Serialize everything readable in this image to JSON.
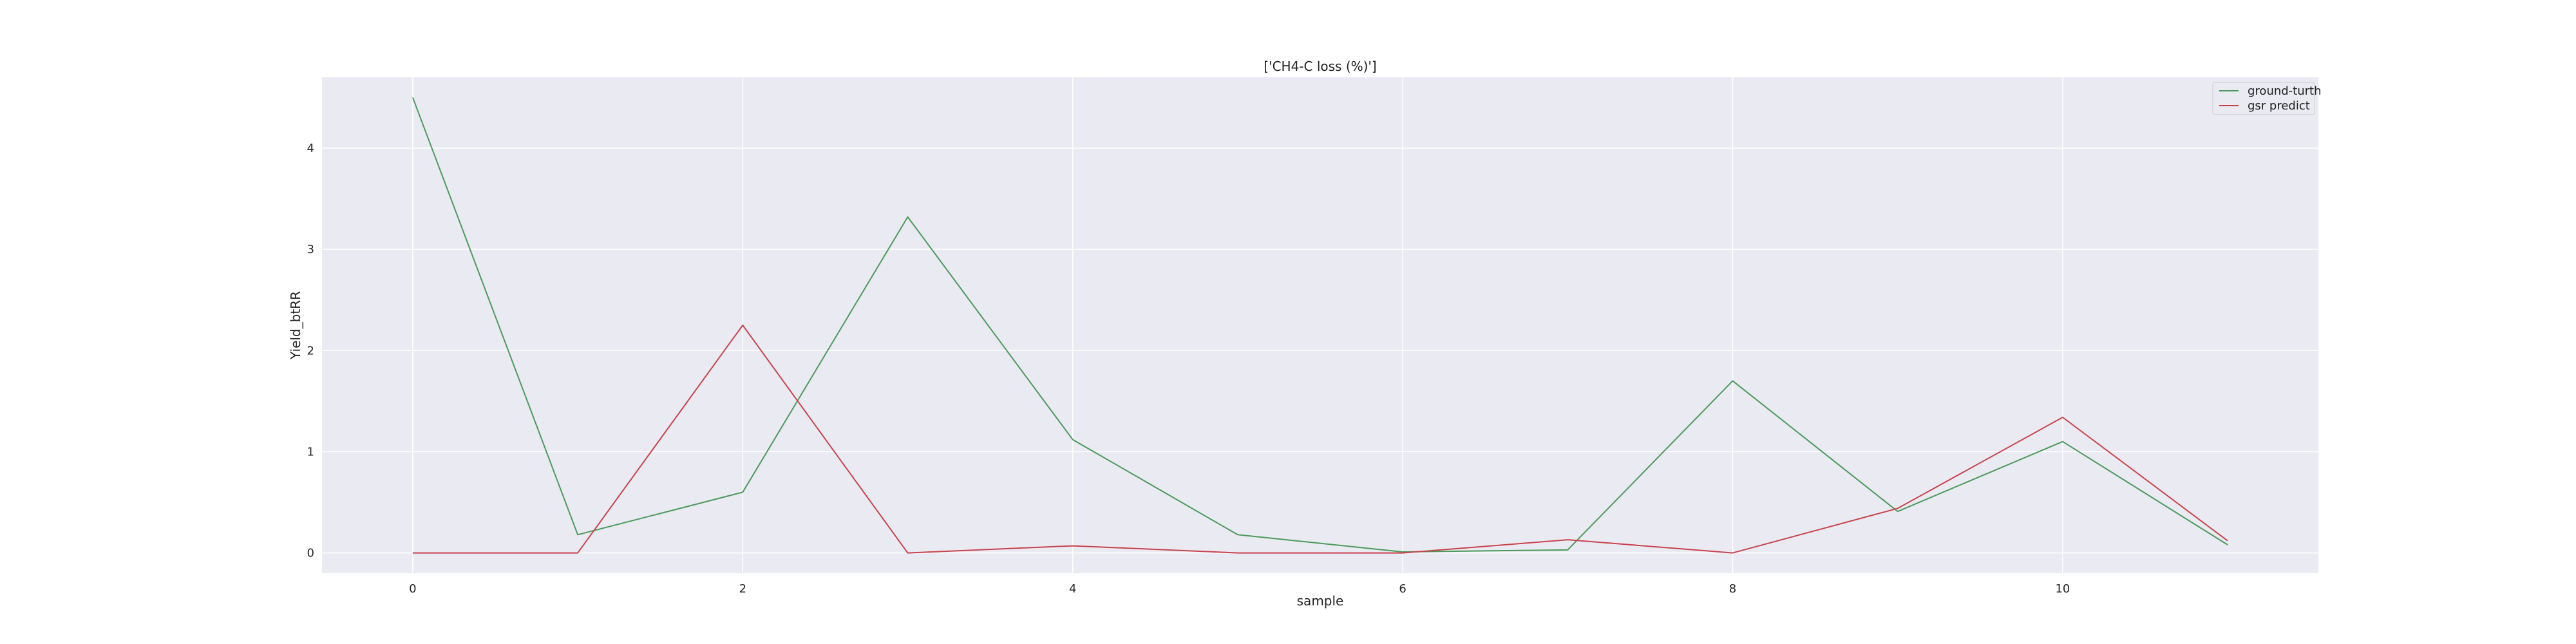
{
  "chart_data": {
    "type": "line",
    "title": "['CH4-C loss (%)']",
    "xlabel": "sample",
    "ylabel": "Yield_btRR",
    "x": [
      0,
      1,
      2,
      3,
      4,
      5,
      6,
      7,
      8,
      9,
      10,
      11
    ],
    "xticks": [
      "0",
      "2",
      "4",
      "6",
      "8",
      "10"
    ],
    "yticks": [
      "0",
      "1",
      "2",
      "3",
      "4"
    ],
    "xlim": [
      -0.55,
      11.55
    ],
    "ylim": [
      -0.2,
      4.7
    ],
    "grid": true,
    "legend_position": "top-right",
    "background": "#eaeaf2",
    "series": [
      {
        "name": "ground-turth",
        "color": "#4a9a5b",
        "values": [
          4.5,
          0.18,
          0.6,
          3.32,
          1.12,
          0.18,
          0.01,
          0.03,
          1.7,
          0.41,
          1.1,
          0.08
        ]
      },
      {
        "name": "gsr predict",
        "color": "#c8434c",
        "values": [
          0.0,
          0.0,
          2.25,
          0.0,
          0.07,
          0.0,
          0.0,
          0.13,
          0.0,
          0.44,
          1.34,
          0.12
        ]
      }
    ]
  }
}
